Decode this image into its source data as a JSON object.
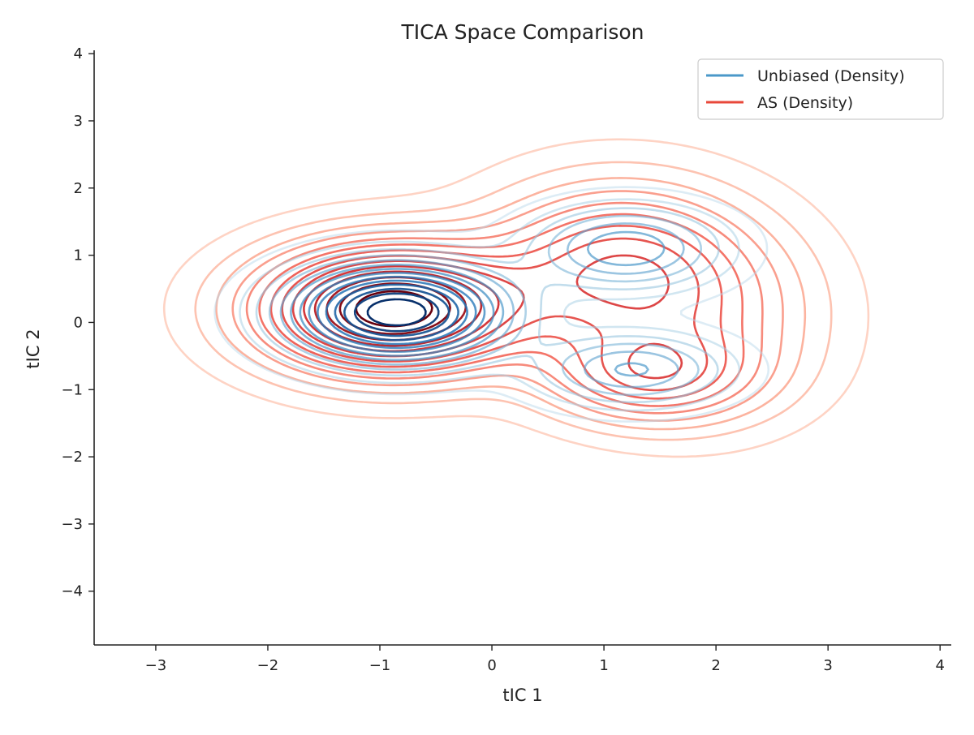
{
  "chart_data": {
    "type": "contour",
    "title": "TICA Space Comparison",
    "xlabel": "tIC 1",
    "ylabel": "tIC 2",
    "xlim": [
      -3.55,
      4.1
    ],
    "ylim": [
      -4.8,
      4.05
    ],
    "xticks": [
      -3,
      -2,
      -1,
      0,
      1,
      2,
      3,
      4
    ],
    "yticks": [
      -4,
      -3,
      -2,
      -1,
      0,
      1,
      2,
      3,
      4
    ],
    "xtick_labels": [
      "−3",
      "−2",
      "−1",
      "0",
      "1",
      "2",
      "3",
      "4"
    ],
    "ytick_labels": [
      "−4",
      "−3",
      "−2",
      "−1",
      "0",
      "1",
      "2",
      "3",
      "4"
    ],
    "grid": false,
    "legend_position": "top-right",
    "series": [
      {
        "name": "Unbiased (Density)",
        "color": "#4a98c9",
        "colormap": "Blues",
        "levels": 14,
        "modes": [
          {
            "cx": -0.85,
            "cy": 0.15,
            "sx": 0.6,
            "sy": 0.45,
            "w": 1.0
          },
          {
            "cx": 1.2,
            "cy": 1.1,
            "sx": 0.55,
            "sy": 0.4,
            "w": 0.35
          },
          {
            "cx": 1.25,
            "cy": -0.7,
            "sx": 0.55,
            "sy": 0.35,
            "w": 0.3
          }
        ]
      },
      {
        "name": "AS (Density)",
        "color": "#e8483a",
        "colormap": "Reds",
        "levels": 14,
        "modes": [
          {
            "cx": -0.9,
            "cy": 0.2,
            "sx": 0.75,
            "sy": 0.6,
            "w": 1.0
          },
          {
            "cx": 1.1,
            "cy": 0.8,
            "sx": 0.75,
            "sy": 0.8,
            "w": 0.45
          },
          {
            "cx": 1.4,
            "cy": -0.8,
            "sx": 0.6,
            "sy": 0.45,
            "w": 0.35
          },
          {
            "cx": 1.9,
            "cy": 0.0,
            "sx": 0.7,
            "sy": 0.9,
            "w": 0.2
          }
        ]
      }
    ]
  }
}
